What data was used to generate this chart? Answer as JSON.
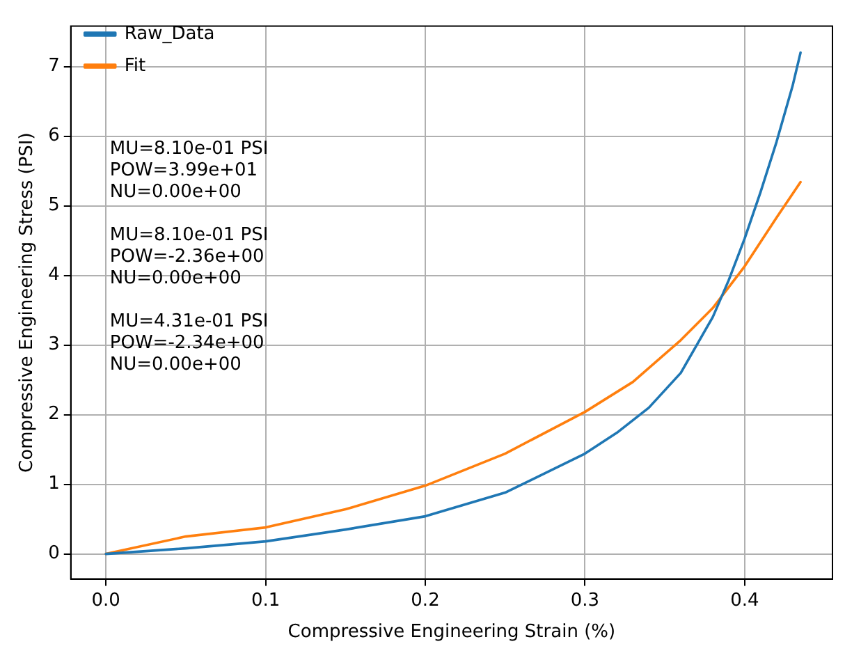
{
  "chart_data": {
    "type": "line",
    "xlabel": "Compressive Engineering Strain (%)",
    "ylabel": "Compressive Engineering Stress (PSI)",
    "series": [
      {
        "name": "Raw_Data",
        "color": "#1f77b4",
        "x": [
          0,
          0.05,
          0.1,
          0.15,
          0.2,
          0.25,
          0.3,
          0.32,
          0.34,
          0.36,
          0.37,
          0.38,
          0.39,
          0.4,
          0.41,
          0.42,
          0.43,
          0.435
        ],
        "values": [
          0,
          0.08,
          0.18,
          0.35,
          0.54,
          0.88,
          1.44,
          1.74,
          2.1,
          2.6,
          3.0,
          3.4,
          3.93,
          4.53,
          5.2,
          5.92,
          6.72,
          7.2
        ]
      },
      {
        "name": "Fit",
        "color": "#ff7f0e",
        "x": [
          0,
          0.05,
          0.1,
          0.15,
          0.2,
          0.25,
          0.3,
          0.33,
          0.36,
          0.38,
          0.4,
          0.42,
          0.435
        ],
        "values": [
          0,
          0.25,
          0.38,
          0.64,
          0.98,
          1.44,
          2.04,
          2.47,
          3.07,
          3.53,
          4.13,
          4.83,
          5.34
        ]
      }
    ],
    "xlim": [
      -0.022,
      0.455
    ],
    "xticks": [
      {
        "value": 0,
        "label": "0.0"
      },
      0.1,
      0.2,
      0.3,
      0.4
    ],
    "ylim": [
      -0.36,
      7.58
    ],
    "yticks": [
      0,
      1,
      2,
      3,
      4,
      5,
      6,
      7
    ],
    "grid": true,
    "legend": "top left",
    "marker": "none",
    "line_style": "solid",
    "annotations": [
      "MU=8.10e-01 PSI\nPOW=3.99e+01\nNU=0.00e+00",
      "MU=8.10e-01 PSI\nPOW=-2.36e+00\nNU=0.00e+00",
      "MU=4.31e-01 PSI\nPOW=-2.34e+00\nNU=0.00e+00"
    ]
  }
}
